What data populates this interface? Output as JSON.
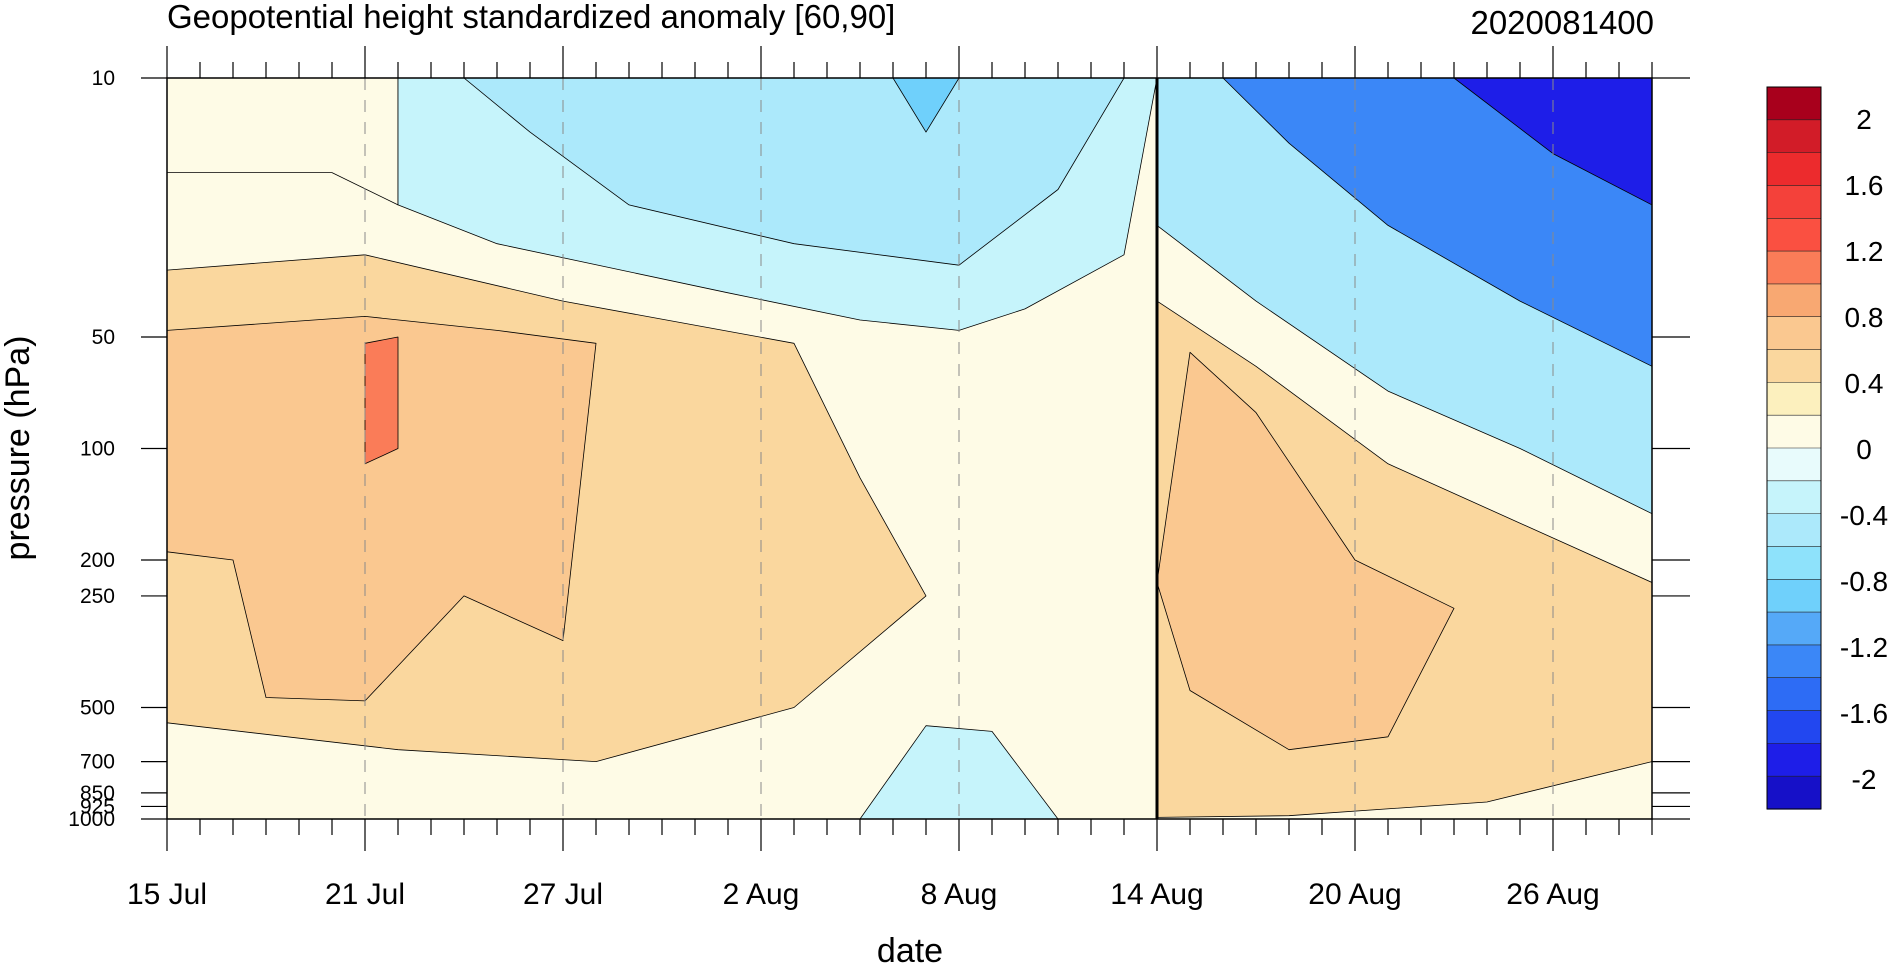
{
  "chart_data": {
    "type": "heatmap",
    "title": "Geopotential height standardized anomaly [60,90]",
    "date_stamp": "2020081400",
    "xlabel": "date",
    "ylabel": "pressure (hPa)",
    "x_ticks": [
      "15 Jul",
      "21 Jul",
      "27 Jul",
      "2 Aug",
      "8 Aug",
      "14 Aug",
      "20 Aug",
      "26 Aug"
    ],
    "x_range": [
      "2020-07-15",
      "2020-08-29"
    ],
    "y_ticks": [
      10,
      50,
      100,
      200,
      250,
      500,
      700,
      850,
      925,
      1000
    ],
    "y_range": [
      1000,
      10
    ],
    "y_scale": "log",
    "current_date_marker": "2020-08-14",
    "colorbar": {
      "labels": [
        "2",
        "1.6",
        "1.2",
        "0.8",
        "0.4",
        "0",
        "-0.4",
        "-0.8",
        "-1.2",
        "-1.6",
        "-2"
      ],
      "levels": [
        -2.2,
        -2.0,
        -1.8,
        -1.6,
        -1.4,
        -1.2,
        -1.0,
        -0.8,
        -0.6,
        -0.4,
        -0.2,
        0,
        0.2,
        0.4,
        0.6,
        0.8,
        1.0,
        1.2,
        1.4,
        1.6,
        1.8,
        2.0,
        2.2
      ],
      "colors": [
        "#1610c8",
        "#1e1ee8",
        "#2247f0",
        "#2d6cf5",
        "#3b87f7",
        "#55a9f8",
        "#6fd0fb",
        "#8ee2fb",
        "#ace9fb",
        "#c6f4fb",
        "#e8fbfc",
        "#fefbe6",
        "#fcf0be",
        "#fad79e",
        "#fac890",
        "#f8a872",
        "#fa7c58",
        "#fa5041",
        "#f4413a",
        "#ec2b2d",
        "#d21c28",
        "#a8001c"
      ]
    },
    "regions": [
      {
        "name": "high-lat-start",
        "value": 0.1,
        "points": [
          [
            "2020-07-15",
            10
          ],
          [
            "2020-07-22",
            10
          ],
          [
            "2020-07-22",
            22
          ],
          [
            "2020-07-20",
            18
          ],
          [
            "2020-07-15",
            18
          ]
        ]
      },
      {
        "name": "upper-strat-neg",
        "value": -0.3,
        "points": [
          [
            "2020-07-22",
            10
          ],
          [
            "2020-08-14",
            10
          ],
          [
            "2020-08-13",
            30
          ],
          [
            "2020-08-10",
            42
          ],
          [
            "2020-08-08",
            48
          ],
          [
            "2020-08-05",
            45
          ],
          [
            "2020-08-01",
            38
          ],
          [
            "2020-07-25",
            28
          ],
          [
            "2020-07-22",
            22
          ]
        ]
      },
      {
        "name": "upper-strat-core",
        "value": -0.6,
        "points": [
          [
            "2020-07-24",
            10
          ],
          [
            "2020-08-13",
            10
          ],
          [
            "2020-08-11",
            20
          ],
          [
            "2020-08-08",
            32
          ],
          [
            "2020-08-03",
            28
          ],
          [
            "2020-07-29",
            22
          ],
          [
            "2020-07-26",
            14
          ]
        ]
      },
      {
        "name": "upper-strat-deep",
        "value": -0.9,
        "points": [
          [
            "2020-08-06",
            10
          ],
          [
            "2020-08-08",
            10
          ],
          [
            "2020-08-07",
            14
          ]
        ]
      },
      {
        "name": "early-warm-layer",
        "value": 0.45,
        "points": [
          [
            "2020-07-15",
            33
          ],
          [
            "2020-07-21",
            30
          ],
          [
            "2020-07-27",
            40
          ],
          [
            "2020-08-03",
            52
          ],
          [
            "2020-08-05",
            120
          ],
          [
            "2020-08-07",
            250
          ],
          [
            "2020-08-03",
            500
          ],
          [
            "2020-07-28",
            700
          ],
          [
            "2020-07-22",
            650
          ],
          [
            "2020-07-15",
            550
          ]
        ]
      },
      {
        "name": "early-warm-core",
        "value": 0.7,
        "points": [
          [
            "2020-07-15",
            48
          ],
          [
            "2020-07-21",
            44
          ],
          [
            "2020-07-25",
            48
          ],
          [
            "2020-07-28",
            52
          ],
          [
            "2020-07-27",
            330
          ],
          [
            "2020-07-24",
            250
          ],
          [
            "2020-07-21",
            480
          ],
          [
            "2020-07-18",
            470
          ],
          [
            "2020-07-17",
            200
          ],
          [
            "2020-07-15",
            190
          ]
        ]
      },
      {
        "name": "early-peak",
        "value": 1.1,
        "points": [
          [
            "2020-07-21",
            52
          ],
          [
            "2020-07-22",
            50
          ],
          [
            "2020-07-22",
            100
          ],
          [
            "2020-07-21",
            110
          ]
        ]
      },
      {
        "name": "aug-near-surface-neg",
        "value": -0.3,
        "points": [
          [
            "2020-08-05",
            1000
          ],
          [
            "2020-08-07",
            560
          ],
          [
            "2020-08-09",
            580
          ],
          [
            "2020-08-11",
            1000
          ]
        ]
      },
      {
        "name": "late-upper-neg",
        "value": -0.6,
        "points": [
          [
            "2020-08-14",
            10
          ],
          [
            "2020-08-29",
            10
          ],
          [
            "2020-08-29",
            150
          ],
          [
            "2020-08-25",
            100
          ],
          [
            "2020-08-21",
            70
          ],
          [
            "2020-08-17",
            40
          ],
          [
            "2020-08-14",
            25
          ]
        ]
      },
      {
        "name": "late-upper-strong",
        "value": -1.4,
        "points": [
          [
            "2020-08-16",
            10
          ],
          [
            "2020-08-29",
            10
          ],
          [
            "2020-08-29",
            60
          ],
          [
            "2020-08-25",
            40
          ],
          [
            "2020-08-21",
            25
          ],
          [
            "2020-08-18",
            15
          ]
        ]
      },
      {
        "name": "late-upper-extreme",
        "value": -2.0,
        "points": [
          [
            "2020-08-23",
            10
          ],
          [
            "2020-08-29",
            10
          ],
          [
            "2020-08-29",
            22
          ],
          [
            "2020-08-26",
            16
          ]
        ]
      },
      {
        "name": "late-warm-layer",
        "value": 0.45,
        "points": [
          [
            "2020-08-14",
            40
          ],
          [
            "2020-08-17",
            60
          ],
          [
            "2020-08-21",
            110
          ],
          [
            "2020-08-29",
            230
          ],
          [
            "2020-08-29",
            700
          ],
          [
            "2020-08-24",
            900
          ],
          [
            "2020-08-18",
            980
          ],
          [
            "2020-08-14",
            990
          ]
        ]
      },
      {
        "name": "late-warm-core",
        "value": 0.7,
        "points": [
          [
            "2020-08-15",
            55
          ],
          [
            "2020-08-17",
            80
          ],
          [
            "2020-08-20",
            200
          ],
          [
            "2020-08-23",
            270
          ],
          [
            "2020-08-21",
            600
          ],
          [
            "2020-08-18",
            650
          ],
          [
            "2020-08-15",
            450
          ],
          [
            "2020-08-14",
            230
          ]
        ]
      }
    ]
  }
}
